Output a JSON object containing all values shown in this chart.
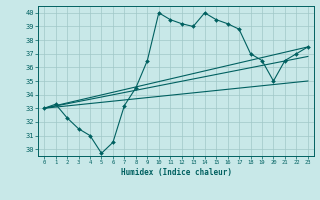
{
  "xlabel": "Humidex (Indice chaleur)",
  "bg_color": "#c8e8e8",
  "grid_color": "#a0c8c8",
  "line_color": "#006060",
  "xlim": [
    -0.5,
    23.5
  ],
  "ylim": [
    29.5,
    40.5
  ],
  "xticks": [
    0,
    1,
    2,
    3,
    4,
    5,
    6,
    7,
    8,
    9,
    10,
    11,
    12,
    13,
    14,
    15,
    16,
    17,
    18,
    19,
    20,
    21,
    22,
    23
  ],
  "yticks": [
    30,
    31,
    32,
    33,
    34,
    35,
    36,
    37,
    38,
    39,
    40
  ],
  "main_line": {
    "x": [
      0,
      1,
      2,
      3,
      4,
      5,
      6,
      7,
      8,
      9,
      10,
      11,
      12,
      13,
      14,
      15,
      16,
      17,
      18,
      19,
      20,
      21,
      22,
      23
    ],
    "y": [
      33,
      33.3,
      32.3,
      31.5,
      31.0,
      29.7,
      30.5,
      33.2,
      34.5,
      36.5,
      40.0,
      39.5,
      39.2,
      39.0,
      40.0,
      39.5,
      39.2,
      38.8,
      37.0,
      36.5,
      35.0,
      36.5,
      37.0,
      37.5
    ]
  },
  "trend_lines": [
    {
      "x": [
        0,
        23
      ],
      "y": [
        33.0,
        37.5
      ]
    },
    {
      "x": [
        0,
        23
      ],
      "y": [
        33.0,
        35.0
      ]
    },
    {
      "x": [
        0,
        23
      ],
      "y": [
        33.0,
        36.8
      ]
    }
  ]
}
